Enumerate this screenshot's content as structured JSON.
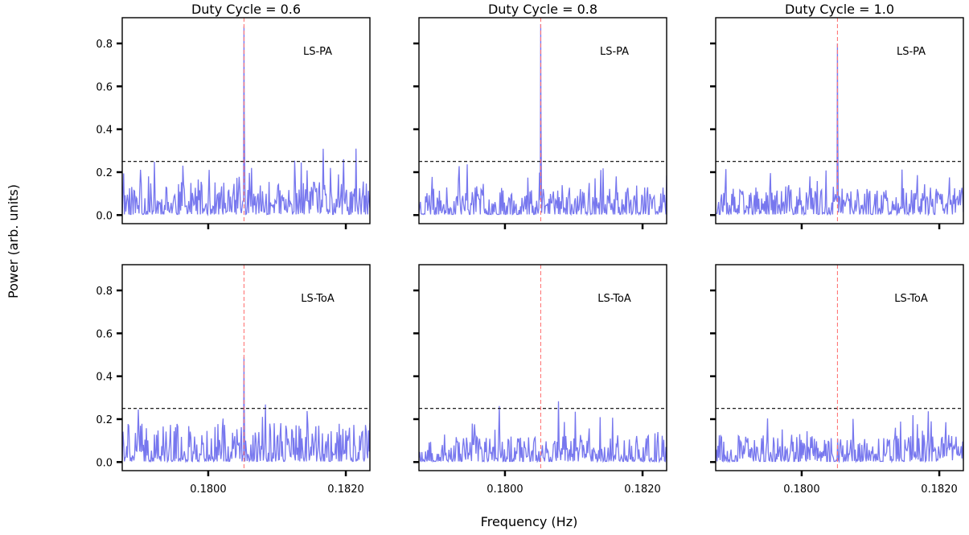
{
  "chart_data": {
    "type": "line",
    "layout": "2x3 grid, shared x and y axes",
    "xlabel": "Frequency (Hz)",
    "ylabel": "Power (arb. units)",
    "xlim": [
      0.17875,
      0.18235
    ],
    "ylim": [
      -0.04,
      0.92
    ],
    "x_ticks": [
      0.18,
      0.182
    ],
    "x_tick_labels": [
      "0.1800",
      "0.1820"
    ],
    "y_ticks": [
      0.0,
      0.2,
      0.4,
      0.6,
      0.8
    ],
    "y_tick_labels": [
      "0.0",
      "0.2",
      "0.4",
      "0.6",
      "0.8"
    ],
    "grid": false,
    "line_color": "#7777ee",
    "threshold": {
      "value": 0.25,
      "style": "dashed",
      "color": "#000000"
    },
    "true_frequency": {
      "value": 0.18052,
      "style": "dashed",
      "color": "#ff7777"
    },
    "columns": [
      "Duty Cycle = 0.6",
      "Duty Cycle = 0.8",
      "Duty Cycle = 1.0"
    ],
    "rows": [
      "LS-PA",
      "LS-ToA"
    ],
    "panels": [
      {
        "title": "Duty Cycle = 0.6",
        "label": "LS-PA",
        "seed": 11,
        "base": 0.06,
        "peak": 0.88,
        "spikes": [
          [
            0.17882,
            0.14
          ],
          [
            0.17902,
            0.32
          ],
          [
            0.17922,
            0.29
          ],
          [
            0.17963,
            0.24
          ],
          [
            0.18063,
            0.22
          ],
          [
            0.18167,
            0.31
          ],
          [
            0.18178,
            0.28
          ],
          [
            0.18197,
            0.29
          ],
          [
            0.18215,
            0.33
          ]
        ]
      },
      {
        "title": "Duty Cycle = 0.8",
        "label": "LS-PA",
        "seed": 23,
        "base": 0.05,
        "peak": 0.89,
        "spikes": [
          [
            0.17933,
            0.32
          ],
          [
            0.17945,
            0.24
          ],
          [
            0.17885,
            0.13
          ],
          [
            0.18056,
            0.19
          ],
          [
            0.18122,
            0.22
          ],
          [
            0.18162,
            0.21
          ]
        ]
      },
      {
        "title": "Duty Cycle = 1.0",
        "label": "LS-PA",
        "seed": 37,
        "base": 0.05,
        "peak": 0.8,
        "spikes": [
          [
            0.18012,
            0.18
          ],
          [
            0.18122,
            0.17
          ],
          [
            0.18168,
            0.19
          ],
          [
            0.18225,
            0.11
          ]
        ]
      },
      {
        "title": "Duty Cycle = 0.6",
        "label": "LS-ToA",
        "seed": 41,
        "base": 0.07,
        "peak": 0.49,
        "spikes": [
          [
            0.17898,
            0.32
          ],
          [
            0.17955,
            0.22
          ],
          [
            0.18083,
            0.28
          ],
          [
            0.1809,
            0.29
          ],
          [
            0.18105,
            0.27
          ],
          [
            0.18212,
            0.22
          ]
        ]
      },
      {
        "title": "Duty Cycle = 0.8",
        "label": "LS-ToA",
        "seed": 53,
        "base": 0.05,
        "peak": 0.05,
        "spikes": [
          [
            0.17992,
            0.28
          ],
          [
            0.18078,
            0.3
          ],
          [
            0.18122,
            0.23
          ],
          [
            0.18222,
            0.16
          ]
        ]
      },
      {
        "title": "Duty Cycle = 1.0",
        "label": "LS-ToA",
        "seed": 67,
        "base": 0.05,
        "peak": 0.07,
        "spikes": [
          [
            0.17985,
            0.19
          ],
          [
            0.18075,
            0.26
          ],
          [
            0.18168,
            0.18
          ],
          [
            0.18125,
            0.16
          ]
        ]
      }
    ]
  }
}
